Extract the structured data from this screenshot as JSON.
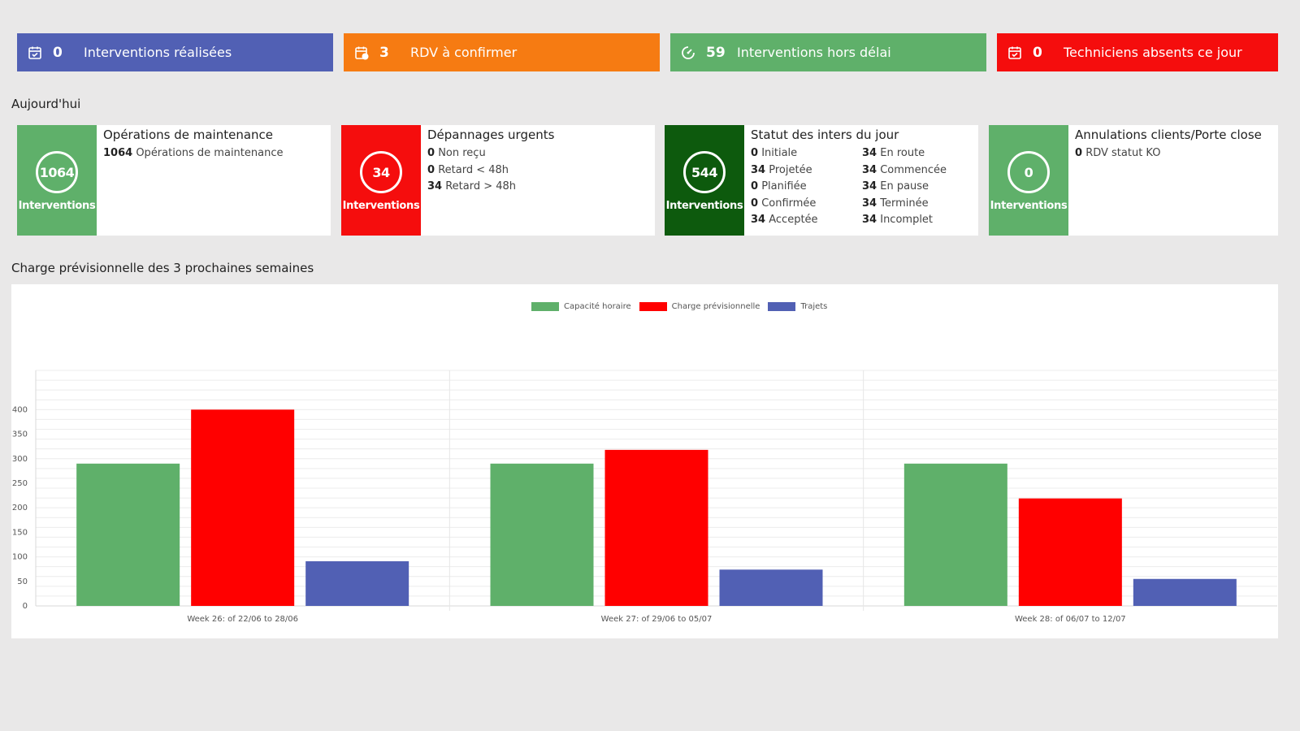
{
  "kpis": [
    {
      "icon": "calendar-check-icon",
      "value": "0",
      "label": "Interventions réalisées",
      "color": "#5160b4"
    },
    {
      "icon": "calendar-clock-icon",
      "value": "3",
      "label": "RDV à confirmer",
      "color": "#f67b12"
    },
    {
      "icon": "clock-icon",
      "value": "59",
      "label": "Interventions hors délai",
      "color": "#5fb06a"
    },
    {
      "icon": "calendar-check-icon",
      "value": "0",
      "label": "Techniciens absents ce jour",
      "color": "#f50d0d"
    }
  ],
  "today": {
    "title": "Aujourd'hui",
    "cards": [
      {
        "count": "1064",
        "badge_label": "Interventions",
        "color": "#5fb06a",
        "title": "Opérations de maintenance",
        "lines": [
          {
            "value": "1064",
            "text": "Opérations de maintenance"
          }
        ]
      },
      {
        "count": "34",
        "badge_label": "Interventions",
        "color": "#f50d0d",
        "title": "Dépannages urgents",
        "lines": [
          {
            "value": "0",
            "text": "Non reçu"
          },
          {
            "value": "0",
            "text": "Retard < 48h"
          },
          {
            "value": "34",
            "text": "Retard > 48h"
          }
        ]
      },
      {
        "count": "544",
        "badge_label": "Interventions",
        "color": "#0d5a0d",
        "title": "Statut des inters du jour",
        "col1": [
          {
            "value": "0",
            "text": "Initiale"
          },
          {
            "value": "34",
            "text": "Projetée"
          },
          {
            "value": "0",
            "text": "Planifiée"
          },
          {
            "value": "0",
            "text": "Confirmée"
          },
          {
            "value": "34",
            "text": "Acceptée"
          }
        ],
        "col2": [
          {
            "value": "34",
            "text": "En route"
          },
          {
            "value": "34",
            "text": "Commencée"
          },
          {
            "value": "34",
            "text": "En pause"
          },
          {
            "value": "34",
            "text": "Terminée"
          },
          {
            "value": "34",
            "text": "Incomplet"
          }
        ]
      },
      {
        "count": "0",
        "badge_label": "Interventions",
        "color": "#5fb06a",
        "title": "Annulations clients/Porte close",
        "lines": [
          {
            "value": "0",
            "text": "RDV statut KO"
          }
        ]
      }
    ]
  },
  "forecast": {
    "title": "Charge prévisionnelle des 3 prochaines semaines"
  },
  "chart_data": {
    "type": "bar",
    "categories": [
      "Week 26: of 22/06 to 28/06",
      "Week 27: of 29/06 to 05/07",
      "Week 28: of 06/07 to 12/07"
    ],
    "series": [
      {
        "name": "Capacité horaire",
        "values": [
          290,
          290,
          290
        ],
        "color": "#5fb06a"
      },
      {
        "name": "Charge prévisionnelle",
        "values": [
          400,
          318,
          219
        ],
        "color": "#ff0000"
      },
      {
        "name": "Trajets",
        "values": [
          91,
          74,
          55
        ],
        "color": "#5160b4"
      }
    ],
    "yticks": [
      0,
      50,
      100,
      150,
      200,
      250,
      300,
      350,
      400
    ],
    "ylim": [
      0,
      480
    ],
    "legend_position": "top-center",
    "grid": true
  }
}
